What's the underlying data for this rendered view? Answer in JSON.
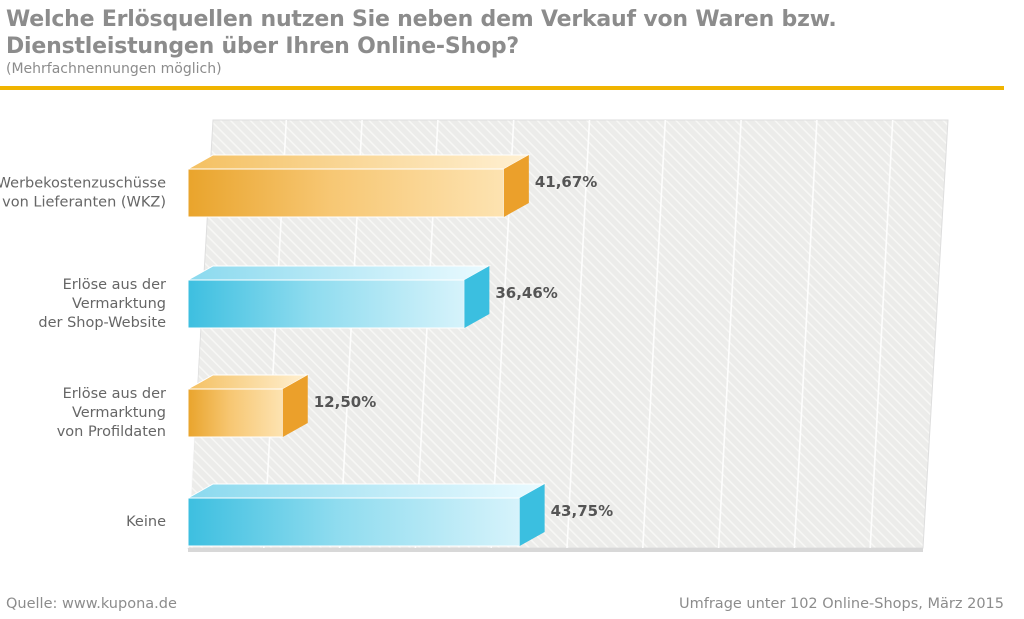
{
  "header": {
    "title_line1": "Welche Erlösquellen nutzen Sie neben dem Verkauf von Waren bzw.",
    "title_line2": "Dienstleistungen über Ihren Online-Shop?",
    "subtitle": "(Mehrfachnennungen möglich)"
  },
  "footer": {
    "source": "Quelle: www.kupona.de",
    "survey": "Umfrage unter 102 Online-Shops, März 2015"
  },
  "colors": {
    "accent_rule": "#f0b400",
    "bar_orange": "#f2ad3c",
    "bar_blue": "#4cc6e4",
    "text_gray": "#8c8c8c"
  },
  "chart_data": {
    "type": "bar",
    "orientation": "horizontal",
    "title": "Welche Erlösquellen nutzen Sie neben dem Verkauf von Waren bzw. Dienstleistungen über Ihren Online-Shop?",
    "subtitle": "(Mehrfachnennungen möglich)",
    "categories": [
      [
        "Werbekostenzuschüsse",
        "von Lieferanten (WKZ)"
      ],
      [
        "Erlöse aus der",
        "Vermarktung",
        "der Shop-Website"
      ],
      [
        "Erlöse aus der",
        "Vermarktung",
        "von Profildaten"
      ],
      [
        "Keine"
      ]
    ],
    "values": [
      41.67,
      36.46,
      12.5,
      43.75
    ],
    "value_labels": [
      "41,67%",
      "36,46%",
      "12,50%",
      "43,75%"
    ],
    "bar_colors": [
      "orange",
      "blue",
      "orange",
      "blue"
    ],
    "xlim": [
      0,
      100
    ],
    "grid": true,
    "gridline_count": 10,
    "xlabel": "",
    "ylabel": ""
  }
}
